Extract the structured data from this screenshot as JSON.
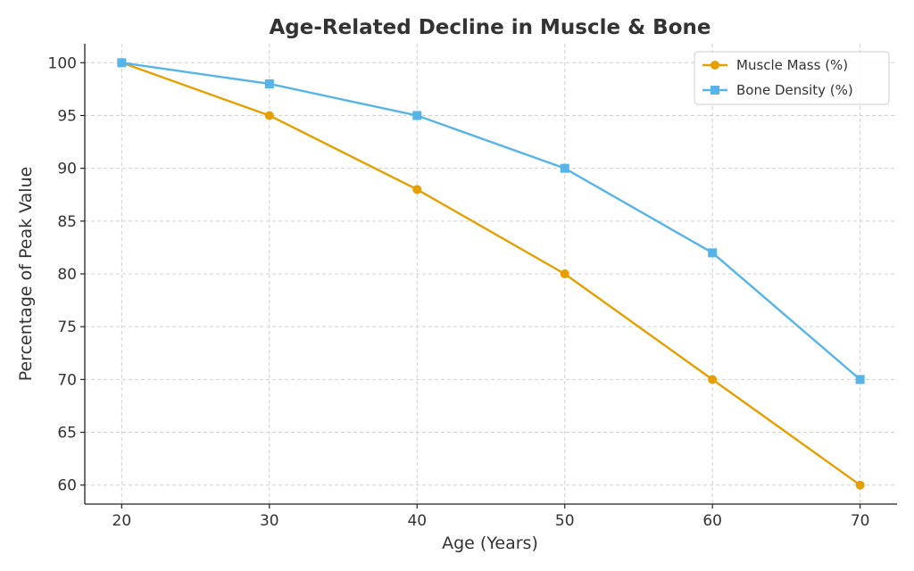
{
  "chart_data": {
    "type": "line",
    "title": "Age-Related Decline in Muscle & Bone",
    "xlabel": "Age (Years)",
    "ylabel": "Percentage of Peak Value",
    "x": [
      20,
      30,
      40,
      50,
      60,
      70
    ],
    "xlim": [
      17.5,
      72.5
    ],
    "ylim": [
      58.2,
      101.8
    ],
    "xticks": [
      20,
      30,
      40,
      50,
      60,
      70
    ],
    "yticks": [
      60,
      65,
      70,
      75,
      80,
      85,
      90,
      95,
      100
    ],
    "grid": true,
    "legend_position": "top-right",
    "series": [
      {
        "name": "Muscle Mass (%)",
        "values": [
          100,
          95,
          88,
          80,
          70,
          60
        ],
        "color": "#E69F00",
        "marker": "circle"
      },
      {
        "name": "Bone Density (%)",
        "values": [
          100,
          98,
          95,
          90,
          82,
          70
        ],
        "color": "#56B4E9",
        "marker": "square"
      }
    ]
  }
}
